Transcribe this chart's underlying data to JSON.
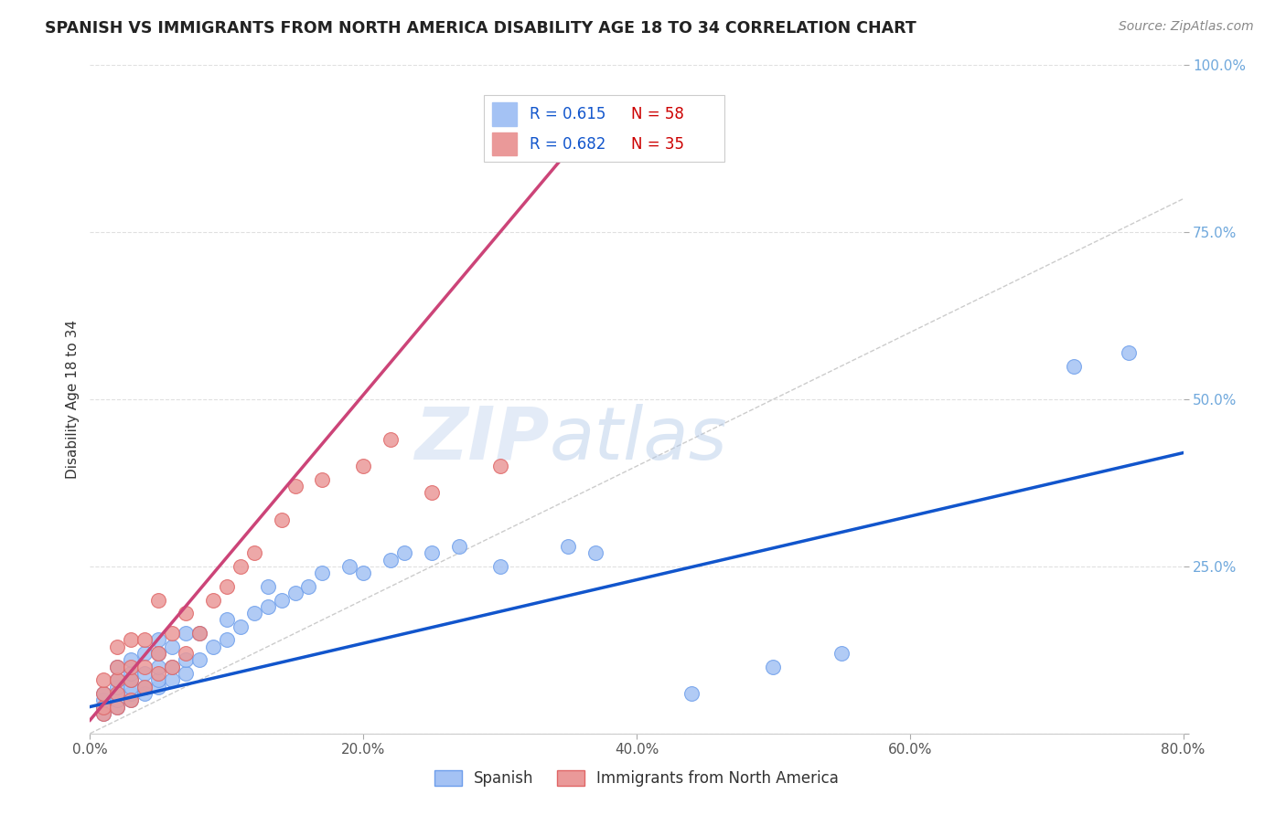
{
  "title": "SPANISH VS IMMIGRANTS FROM NORTH AMERICA DISABILITY AGE 18 TO 34 CORRELATION CHART",
  "source": "Source: ZipAtlas.com",
  "ylabel": "Disability Age 18 to 34",
  "xlim": [
    0.0,
    0.8
  ],
  "ylim": [
    0.0,
    1.0
  ],
  "spanish_color": "#a4c2f4",
  "spanish_edge_color": "#6d9eeb",
  "immigrants_color": "#ea9999",
  "immigrants_edge_color": "#e06666",
  "trend_spanish_color": "#1155cc",
  "trend_immigrants_color": "#cc4478",
  "diag_color": "#cccccc",
  "R_spanish": 0.615,
  "N_spanish": 58,
  "R_immigrants": 0.682,
  "N_immigrants": 35,
  "spanish_x": [
    0.01,
    0.01,
    0.01,
    0.01,
    0.02,
    0.02,
    0.02,
    0.02,
    0.02,
    0.02,
    0.03,
    0.03,
    0.03,
    0.03,
    0.03,
    0.03,
    0.04,
    0.04,
    0.04,
    0.04,
    0.05,
    0.05,
    0.05,
    0.05,
    0.05,
    0.06,
    0.06,
    0.06,
    0.07,
    0.07,
    0.07,
    0.08,
    0.08,
    0.09,
    0.1,
    0.1,
    0.11,
    0.12,
    0.13,
    0.13,
    0.14,
    0.15,
    0.16,
    0.17,
    0.19,
    0.2,
    0.22,
    0.23,
    0.25,
    0.27,
    0.3,
    0.35,
    0.37,
    0.44,
    0.5,
    0.55,
    0.72,
    0.76
  ],
  "spanish_y": [
    0.03,
    0.04,
    0.05,
    0.06,
    0.04,
    0.05,
    0.06,
    0.07,
    0.08,
    0.1,
    0.05,
    0.06,
    0.07,
    0.08,
    0.09,
    0.11,
    0.06,
    0.07,
    0.09,
    0.12,
    0.07,
    0.08,
    0.1,
    0.12,
    0.14,
    0.08,
    0.1,
    0.13,
    0.09,
    0.11,
    0.15,
    0.11,
    0.15,
    0.13,
    0.14,
    0.17,
    0.16,
    0.18,
    0.19,
    0.22,
    0.2,
    0.21,
    0.22,
    0.24,
    0.25,
    0.24,
    0.26,
    0.27,
    0.27,
    0.28,
    0.25,
    0.28,
    0.27,
    0.06,
    0.1,
    0.12,
    0.55,
    0.57
  ],
  "immigrants_x": [
    0.01,
    0.01,
    0.01,
    0.01,
    0.02,
    0.02,
    0.02,
    0.02,
    0.02,
    0.03,
    0.03,
    0.03,
    0.03,
    0.04,
    0.04,
    0.04,
    0.05,
    0.05,
    0.05,
    0.06,
    0.06,
    0.07,
    0.07,
    0.08,
    0.09,
    0.1,
    0.11,
    0.12,
    0.14,
    0.15,
    0.17,
    0.2,
    0.22,
    0.25,
    0.3
  ],
  "immigrants_y": [
    0.03,
    0.04,
    0.06,
    0.08,
    0.04,
    0.06,
    0.08,
    0.1,
    0.13,
    0.05,
    0.08,
    0.1,
    0.14,
    0.07,
    0.1,
    0.14,
    0.09,
    0.12,
    0.2,
    0.1,
    0.15,
    0.12,
    0.18,
    0.15,
    0.2,
    0.22,
    0.25,
    0.27,
    0.32,
    0.37,
    0.38,
    0.4,
    0.44,
    0.36,
    0.4
  ],
  "watermark_zip": "ZIP",
  "watermark_atlas": "atlas",
  "background_color": "#ffffff",
  "grid_color": "#e0e0e0"
}
